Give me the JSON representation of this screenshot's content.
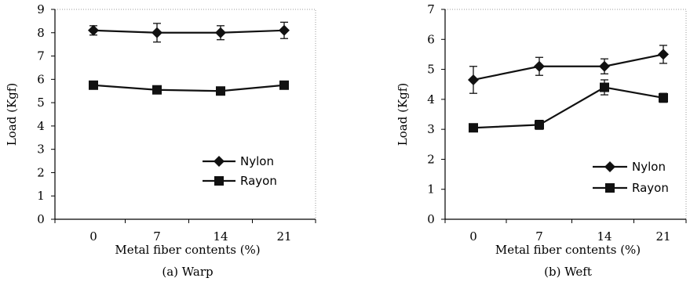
{
  "chart_data": [
    {
      "type": "line",
      "caption": "(a) Warp",
      "xlabel": "Metal fiber contents (%)",
      "ylabel": "Load (Kgf)",
      "categories": [
        "0",
        "7",
        "14",
        "21"
      ],
      "ylim": [
        0,
        9
      ],
      "yticks": [
        "0",
        "1",
        "2",
        "3",
        "4",
        "5",
        "6",
        "7",
        "8",
        "9"
      ],
      "legend_position": "lower-right",
      "grid": false,
      "series": [
        {
          "name": "Nylon",
          "marker": "diamond",
          "values": [
            8.1,
            8.0,
            8.0,
            8.1
          ],
          "errors": [
            0.2,
            0.4,
            0.3,
            0.35
          ]
        },
        {
          "name": "Rayon",
          "marker": "square",
          "values": [
            5.75,
            5.55,
            5.5,
            5.75
          ],
          "errors": [
            0.0,
            0.0,
            0.0,
            0.0
          ]
        }
      ]
    },
    {
      "type": "line",
      "caption": "(b) Weft",
      "xlabel": "Metal fiber contents (%)",
      "ylabel": "Load (Kgf)",
      "categories": [
        "0",
        "7",
        "14",
        "21"
      ],
      "ylim": [
        0,
        7
      ],
      "yticks": [
        "0",
        "1",
        "2",
        "3",
        "4",
        "5",
        "6",
        "7"
      ],
      "legend_position": "lower-right",
      "grid": false,
      "series": [
        {
          "name": "Nylon",
          "marker": "diamond",
          "values": [
            4.65,
            5.1,
            5.1,
            5.5
          ],
          "errors": [
            0.45,
            0.3,
            0.25,
            0.3
          ]
        },
        {
          "name": "Rayon",
          "marker": "square",
          "values": [
            3.05,
            3.15,
            4.4,
            4.05
          ],
          "errors": [
            0.05,
            0.15,
            0.25,
            0.15
          ]
        }
      ]
    }
  ]
}
